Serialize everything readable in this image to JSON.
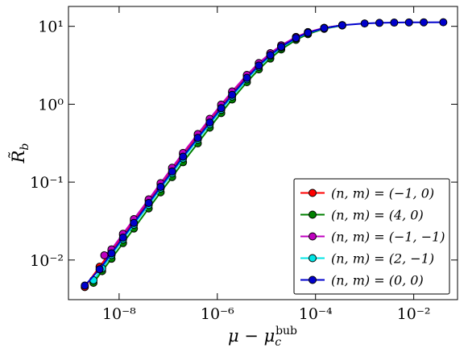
{
  "chart_data": {
    "type": "line",
    "xlabel": {
      "base": "μ − μ",
      "sub": "c",
      "sup": "bub"
    },
    "ylabel": {
      "base": "R̃",
      "sub": "b"
    },
    "xscale": "log",
    "yscale": "log",
    "xlim": [
      9.3e-10,
      0.078
    ],
    "ylim": [
      0.0031,
      18
    ],
    "xticks": [
      {
        "value": 1e-08,
        "label": "10⁻⁸"
      },
      {
        "value": 1e-06,
        "label": "10⁻⁶"
      },
      {
        "value": 0.0001,
        "label": "10⁻⁴"
      },
      {
        "value": 0.01,
        "label": "10⁻²"
      }
    ],
    "yticks": [
      {
        "value": 0.01,
        "label": "10⁻²"
      },
      {
        "value": 0.1,
        "label": "10⁻¹"
      },
      {
        "value": 1,
        "label": "10⁰"
      },
      {
        "value": 10,
        "label": "10¹"
      }
    ],
    "legend": "lower right",
    "series": [
      {
        "name": "(n, m) = (−1, 0)",
        "color": "#ff0000",
        "x": [
          2e-09,
          4e-09,
          7e-09,
          1.2e-08,
          2e-08,
          4e-08,
          7e-08,
          1.2e-07,
          2e-07,
          4e-07,
          7e-07,
          1.2e-06,
          2e-06,
          4e-06,
          7e-06,
          1.2e-05,
          2e-05,
          4e-05,
          7e-05,
          0.00015,
          0.00035
        ],
        "values": [
          0.0045,
          0.0082,
          0.0132,
          0.021,
          0.032,
          0.058,
          0.094,
          0.148,
          0.229,
          0.4,
          0.63,
          0.96,
          1.42,
          2.33,
          3.33,
          4.48,
          5.67,
          7.28,
          8.4,
          9.55,
          10.36
        ]
      },
      {
        "name": "(n, m) = (4, 0)",
        "color": "#008000",
        "x": [
          3e-09,
          4.5e-09,
          7e-09,
          1.2e-08,
          2e-08,
          4e-08,
          7e-08,
          1.2e-07,
          2e-07,
          4e-07,
          7e-07,
          1.2e-06,
          2e-06,
          4e-06,
          7e-06,
          1.2e-05,
          2e-05,
          4e-05,
          7e-05,
          0.00015,
          0.00035
        ],
        "values": [
          0.0051,
          0.0072,
          0.0104,
          0.0165,
          0.0254,
          0.046,
          0.074,
          0.116,
          0.18,
          0.315,
          0.5,
          0.77,
          1.15,
          1.92,
          2.8,
          3.86,
          5.05,
          6.7,
          7.95,
          9.3,
          10.25
        ]
      },
      {
        "name": "(n, m) = (−1, −1)",
        "color": "#bf00bf",
        "x": [
          5e-09,
          7e-09,
          1.2e-08,
          2e-08,
          4e-08,
          7e-08,
          1.2e-07,
          2e-07,
          4e-07,
          7e-07,
          1.2e-06,
          2e-06,
          4e-06,
          7e-06,
          1.2e-05,
          2e-05,
          4e-05,
          7e-05,
          0.00015,
          0.00035
        ],
        "values": [
          0.0115,
          0.0137,
          0.0217,
          0.0335,
          0.06,
          0.097,
          0.153,
          0.237,
          0.414,
          0.65,
          0.99,
          1.46,
          2.38,
          3.38,
          4.52,
          5.71,
          7.3,
          8.42,
          9.56,
          10.36
        ]
      },
      {
        "name": "(n, m) = (2, −1)",
        "color": "#00e5e5",
        "x": [
          3e-09,
          4.5e-09,
          7e-09,
          1.2e-08,
          2e-08,
          4e-08,
          7e-08,
          1.2e-07,
          2e-07,
          4e-07,
          7e-07,
          1.2e-06,
          2e-06,
          4e-06,
          7e-06,
          1.2e-05,
          2e-05,
          4e-05,
          7e-05,
          0.00015,
          0.00035
        ],
        "values": [
          0.0055,
          0.0078,
          0.0116,
          0.0184,
          0.0284,
          0.051,
          0.083,
          0.13,
          0.201,
          0.352,
          0.553,
          0.85,
          1.26,
          2.09,
          3.03,
          4.15,
          5.35,
          7.0,
          8.2,
          9.43,
          10.3
        ]
      },
      {
        "name": "(n, m) = (0, 0)",
        "color": "#0000cc",
        "x": [
          2e-09,
          4e-09,
          7e-09,
          1.2e-08,
          2e-08,
          4e-08,
          7e-08,
          1.2e-07,
          2e-07,
          4e-07,
          7e-07,
          1.2e-06,
          2e-06,
          4e-06,
          7e-06,
          1.2e-05,
          2e-05,
          4e-05,
          7e-05,
          0.00015,
          0.00035,
          0.001,
          0.002,
          0.004,
          0.008,
          0.016,
          0.04
        ],
        "values": [
          0.0047,
          0.0076,
          0.0122,
          0.0194,
          0.0299,
          0.054,
          0.087,
          0.137,
          0.212,
          0.37,
          0.582,
          0.89,
          1.32,
          2.18,
          3.14,
          4.27,
          5.47,
          7.1,
          8.27,
          9.48,
          10.33,
          10.88,
          11.07,
          11.17,
          11.23,
          11.26,
          11.28
        ]
      }
    ]
  }
}
